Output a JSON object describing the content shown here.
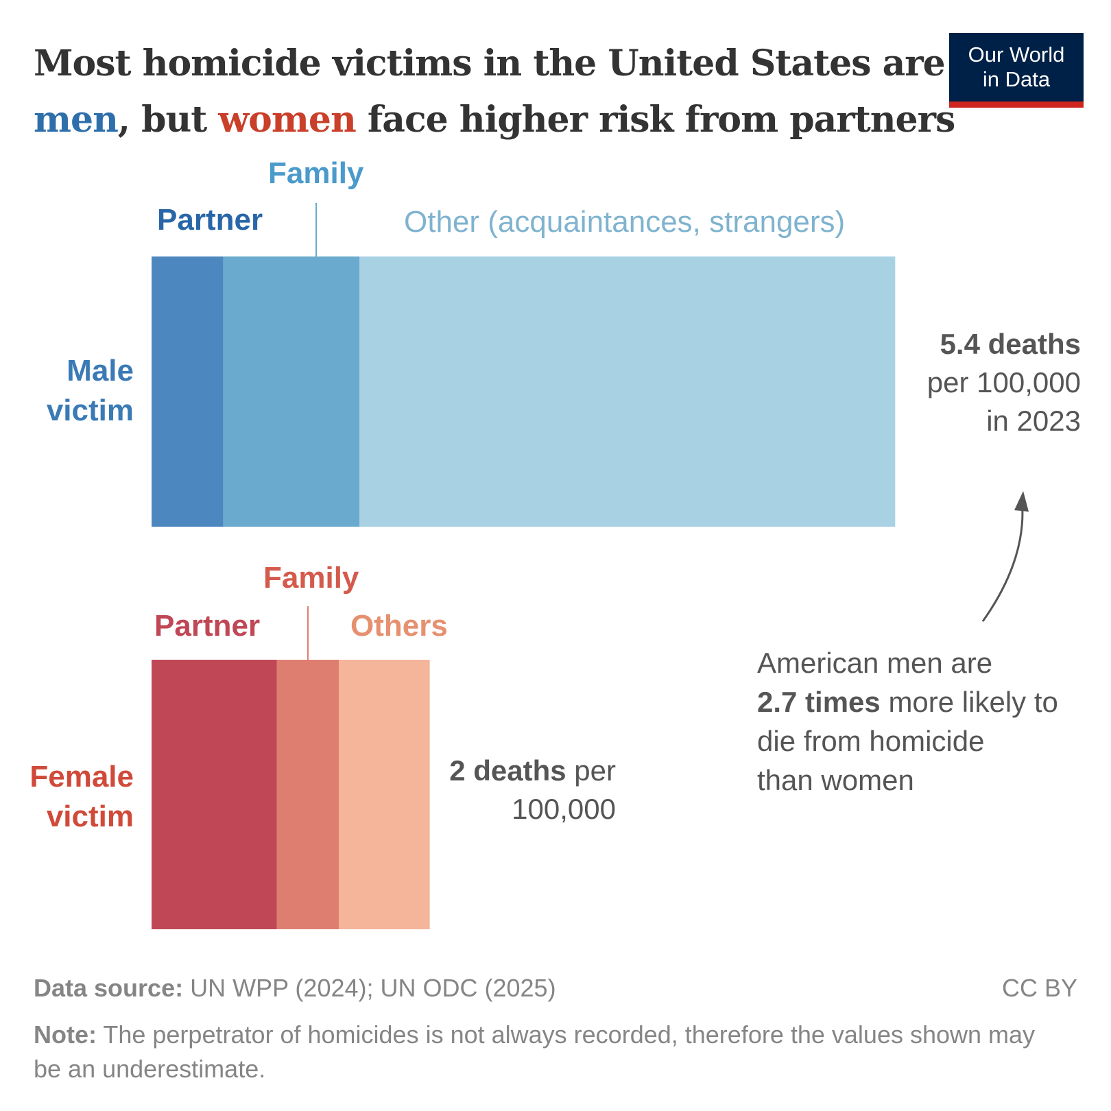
{
  "title": {
    "line1": "Most homicide victims in the United States are",
    "men": "men",
    "mid": ", but ",
    "women": "women",
    "rest": " face higher risk from partners"
  },
  "logo": {
    "line1": "Our World",
    "line2": "in Data"
  },
  "colors": {
    "men": "#2e6fab",
    "women": "#c93f2a",
    "male_partner": "#4d87bf",
    "male_family": "#6aaacf",
    "male_other": "#a9d1e4",
    "female_partner": "#c04755",
    "female_family": "#dd7e71",
    "female_other": "#f4b59a"
  },
  "chart_data": {
    "type": "bar",
    "orientation": "horizontal",
    "stacked": true,
    "unit": "deaths per 100,000",
    "categories": [
      "Male victim",
      "Female victim"
    ],
    "bars": [
      {
        "category": "Male victim",
        "total": 5.4,
        "segments": [
          {
            "name": "Partner",
            "value": 0.52
          },
          {
            "name": "Family",
            "value": 0.99
          },
          {
            "name": "Other (acquaintances, strangers)",
            "value": 3.89
          }
        ]
      },
      {
        "category": "Female victim",
        "total": 2,
        "segments": [
          {
            "name": "Partner",
            "value": 0.91
          },
          {
            "name": "Family",
            "value": 0.45
          },
          {
            "name": "Others",
            "value": 0.66
          }
        ]
      }
    ]
  },
  "labels": {
    "male_category": [
      "Male",
      "victim"
    ],
    "female_category": [
      "Female",
      "victim"
    ],
    "male_partner": "Partner",
    "male_family": "Family",
    "male_other": "Other (acquaintances, strangers)",
    "female_partner": "Partner",
    "female_family": "Family",
    "female_other": "Others",
    "male_value_bold": "5.4 deaths",
    "male_value_rest1": "per 100,000",
    "male_value_rest2": "in 2023",
    "female_value_bold": "2 deaths",
    "female_value_rest1": " per",
    "female_value_rest2": "100,000"
  },
  "annotation": {
    "line1": "American men are",
    "bold": "2.7 times",
    "line2_rest": " more likely to",
    "line3": "die from homicide",
    "line4": "than women"
  },
  "footer": {
    "source_label": "Data source:",
    "source": " UN WPP (2024); UN ODC (2025)",
    "license": "CC BY",
    "note_label": "Note:",
    "note": " The perpetrator of homicides is not always recorded, therefore the values shown may be an underestimate."
  }
}
